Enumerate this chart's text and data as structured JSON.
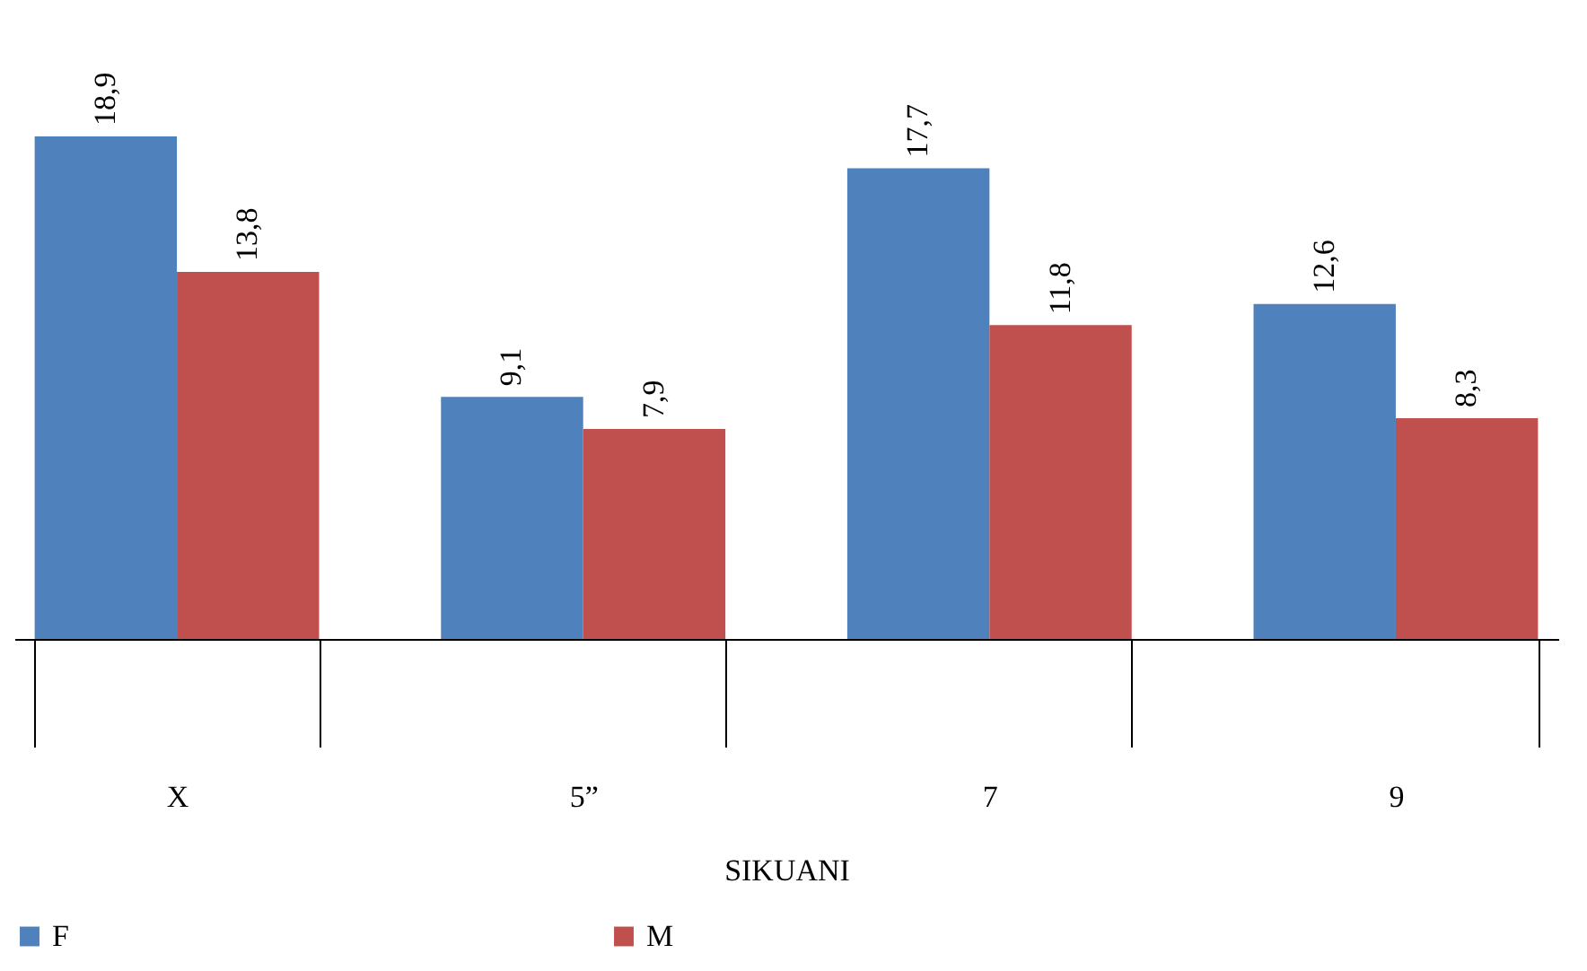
{
  "chart_data": {
    "type": "bar",
    "xlabel": "SIKUANI",
    "categories": [
      "X",
      "5”",
      "7",
      "9"
    ],
    "series": [
      {
        "name": "F",
        "color": "#4f81bd",
        "values": [
          18.9,
          9.1,
          17.7,
          12.6
        ],
        "value_labels": [
          "18,9",
          "9,1",
          "17,7",
          "12,6"
        ]
      },
      {
        "name": "M",
        "color": "#c0504d",
        "values": [
          13.8,
          7.9,
          11.8,
          8.3
        ],
        "value_labels": [
          "13,8",
          "7,9",
          "11,8",
          "8,3"
        ]
      }
    ],
    "legend": "bottom",
    "grid": false
  }
}
